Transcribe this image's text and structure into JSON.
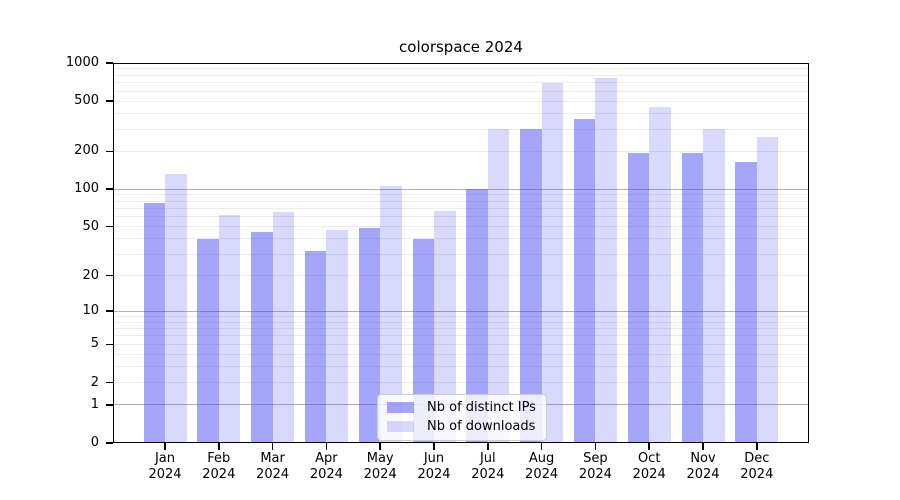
{
  "title": "colorspace 2024",
  "colors": {
    "distinct_ips_bar": "#a5a5fa",
    "downloads_bar": "#d9d9fd",
    "distinct_ips_rgba": "rgba(64,64,244,0.47)",
    "downloads_rgba": "rgba(64,64,244,0.20)",
    "major_gridline": "#b2b2b2",
    "minor_gridline": "#ececec",
    "axis": "#000000",
    "background": "#ffffff"
  },
  "chart_data": {
    "type": "bar",
    "title": "colorspace 2024",
    "categories": [
      "Jan 2024",
      "Feb 2024",
      "Mar 2024",
      "Apr 2024",
      "May 2024",
      "Jun 2024",
      "Jul 2024",
      "Aug 2024",
      "Sep 2024",
      "Oct 2024",
      "Nov 2024",
      "Dec 2024"
    ],
    "series": [
      {
        "name": "Nb of distinct IPs",
        "key": "distinct-ips",
        "color": "rgba(64,64,244,0.47)",
        "values": [
          77,
          40,
          45,
          32,
          49,
          40,
          101,
          298,
          358,
          195,
          195,
          164
        ]
      },
      {
        "name": "Nb of downloads",
        "key": "downloads",
        "color": "rgba(64,64,244,0.20)",
        "values": [
          131,
          62,
          66,
          47,
          105,
          67,
          302,
          695,
          756,
          452,
          298,
          262
        ]
      }
    ],
    "xlabel": "",
    "ylabel": "",
    "yscale": "log1p",
    "ylim": [
      0,
      1000
    ],
    "yticks": [
      0,
      1,
      2,
      5,
      10,
      20,
      50,
      100,
      200,
      500,
      1000
    ],
    "major_gridlines": [
      1,
      10,
      100,
      1000
    ],
    "minor_gridlines": [
      2,
      3,
      4,
      5,
      6,
      7,
      8,
      9,
      20,
      30,
      40,
      50,
      60,
      70,
      80,
      90,
      200,
      300,
      400,
      500,
      600,
      700,
      800,
      900
    ],
    "grid": "on",
    "legend_position": "lower center"
  }
}
